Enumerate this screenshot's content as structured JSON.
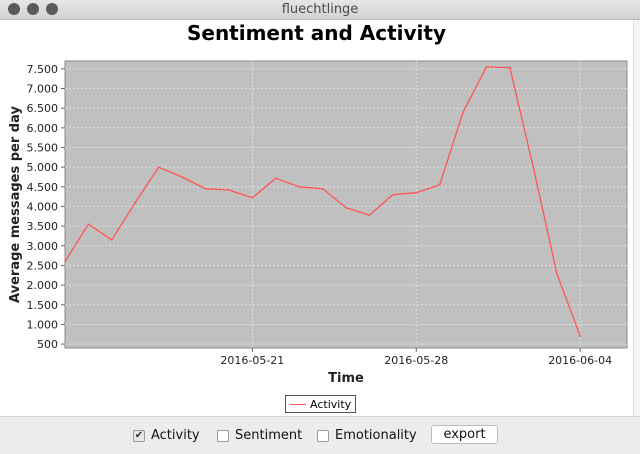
{
  "window": {
    "title": "fluechtlinge"
  },
  "controls": {
    "activity": {
      "label": "Activity",
      "checked": true
    },
    "sentiment": {
      "label": "Sentiment",
      "checked": false
    },
    "emotionality": {
      "label": "Emotionality",
      "checked": false
    },
    "export_label": "export"
  },
  "colors": {
    "series": "#ff5555",
    "plot_bg": "#c0c0c0"
  },
  "chart_data": {
    "type": "line",
    "title": "Sentiment and Activity",
    "xlabel": "Time",
    "ylabel": "Average messages per day",
    "legend": "bottom",
    "grid": true,
    "x_ticks": [
      "2016-05-21",
      "2016-05-28",
      "2016-06-04"
    ],
    "y_ticks": [
      "500",
      "1.000",
      "1.500",
      "2.000",
      "2.500",
      "3.000",
      "3.500",
      "4.000",
      "4.500",
      "5.000",
      "5.500",
      "6.000",
      "6.500",
      "7.000",
      "7.500"
    ],
    "ylim": [
      400,
      7700
    ],
    "xlim": [
      "2016-05-13",
      "2016-06-06"
    ],
    "series": [
      {
        "name": "Activity",
        "color": "#ff5555",
        "points": [
          [
            "2016-05-13",
            2600
          ],
          [
            "2016-05-14",
            3550
          ],
          [
            "2016-05-15",
            3150
          ],
          [
            "2016-05-16",
            4100
          ],
          [
            "2016-05-17",
            5000
          ],
          [
            "2016-05-18",
            4750
          ],
          [
            "2016-05-19",
            4450
          ],
          [
            "2016-05-20",
            4420
          ],
          [
            "2016-05-21",
            4220
          ],
          [
            "2016-05-22",
            4720
          ],
          [
            "2016-05-23",
            4500
          ],
          [
            "2016-05-24",
            4450
          ],
          [
            "2016-05-25",
            3970
          ],
          [
            "2016-05-26",
            3780
          ],
          [
            "2016-05-27",
            4300
          ],
          [
            "2016-05-28",
            4350
          ],
          [
            "2016-05-29",
            4550
          ],
          [
            "2016-05-30",
            6400
          ],
          [
            "2016-05-31",
            7550
          ],
          [
            "2016-06-01",
            7530
          ],
          [
            "2016-06-02",
            5000
          ],
          [
            "2016-06-03",
            2300
          ],
          [
            "2016-06-04",
            700
          ]
        ]
      }
    ]
  }
}
